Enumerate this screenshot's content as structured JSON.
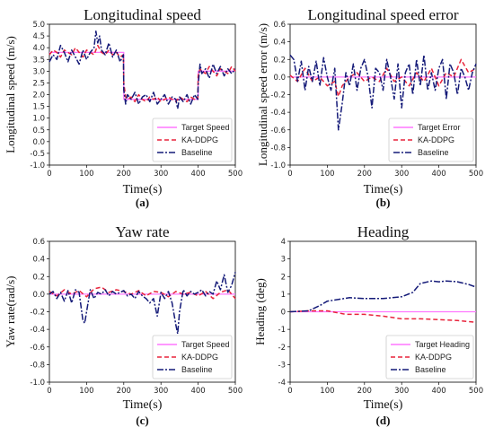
{
  "colors": {
    "target": "#ff77ff",
    "kaddpg": "#e8243c",
    "baseline": "#141a78"
  },
  "chart_data": [
    {
      "type": "line",
      "panel": "(a)",
      "title": "Longitudinal speed",
      "xlabel": "Time(s)",
      "ylabel": "Longitudinal speed (m/s)",
      "xlim": [
        0,
        500
      ],
      "ylim": [
        -1.0,
        5.0
      ],
      "xticks": [
        0,
        100,
        200,
        300,
        400,
        500
      ],
      "yticks": [
        -1.0,
        -0.5,
        0.0,
        0.5,
        1.0,
        1.5,
        2.0,
        2.5,
        3.0,
        3.5,
        4.0,
        4.5,
        5.0
      ],
      "grid": false,
      "legend": "lower-right",
      "series": [
        {
          "name": "Target Speed",
          "style": "solid",
          "color": "#ff77ff",
          "x": [
            0,
            200,
            200,
            400,
            400,
            500
          ],
          "y": [
            3.8,
            3.8,
            1.8,
            1.8,
            3.0,
            3.0
          ]
        },
        {
          "name": "KA-DDPG",
          "style": "dashed",
          "color": "#e8243c",
          "x": [
            0,
            10,
            20,
            30,
            40,
            50,
            60,
            70,
            80,
            90,
            100,
            110,
            120,
            130,
            140,
            150,
            160,
            170,
            180,
            190,
            199,
            200,
            205,
            210,
            220,
            230,
            240,
            250,
            260,
            270,
            280,
            290,
            300,
            310,
            320,
            330,
            340,
            350,
            360,
            370,
            380,
            390,
            399,
            400,
            405,
            410,
            420,
            430,
            440,
            450,
            460,
            470,
            480,
            490,
            500
          ],
          "y": [
            3.7,
            3.9,
            3.8,
            3.6,
            3.9,
            3.8,
            3.7,
            4.0,
            3.8,
            3.6,
            3.9,
            3.8,
            3.7,
            4.1,
            3.8,
            3.7,
            3.9,
            3.7,
            3.8,
            3.6,
            3.7,
            2.5,
            1.9,
            1.8,
            1.9,
            1.7,
            2.0,
            1.8,
            1.7,
            1.9,
            1.8,
            1.9,
            1.7,
            1.8,
            1.9,
            1.8,
            1.7,
            1.9,
            1.8,
            1.7,
            1.9,
            1.8,
            1.8,
            2.8,
            3.1,
            3.0,
            2.9,
            3.2,
            3.0,
            2.8,
            3.1,
            3.0,
            2.9,
            3.2,
            3.0
          ]
        },
        {
          "name": "Baseline",
          "style": "dashdot",
          "color": "#141a78",
          "x": [
            0,
            10,
            20,
            30,
            40,
            50,
            60,
            70,
            80,
            90,
            100,
            110,
            120,
            125,
            130,
            135,
            140,
            150,
            160,
            170,
            180,
            190,
            199,
            200,
            205,
            210,
            220,
            230,
            240,
            250,
            260,
            270,
            280,
            290,
            300,
            310,
            320,
            330,
            340,
            345,
            350,
            360,
            370,
            380,
            390,
            399,
            400,
            405,
            410,
            420,
            430,
            440,
            450,
            460,
            470,
            480,
            490,
            500
          ],
          "y": [
            3.4,
            3.7,
            3.5,
            4.1,
            3.8,
            3.4,
            3.9,
            3.6,
            3.3,
            3.9,
            3.5,
            3.8,
            4.0,
            4.7,
            4.2,
            4.5,
            3.9,
            3.7,
            4.2,
            3.6,
            3.9,
            3.4,
            3.7,
            2.2,
            1.6,
            2.0,
            1.8,
            2.1,
            1.6,
            1.9,
            2.0,
            1.7,
            2.1,
            1.6,
            1.8,
            2.0,
            1.6,
            1.9,
            1.8,
            1.4,
            1.9,
            1.7,
            2.0,
            1.6,
            2.0,
            1.8,
            2.4,
            3.3,
            2.9,
            3.1,
            2.7,
            3.3,
            2.9,
            3.2,
            2.8,
            3.1,
            2.9,
            3.1
          ]
        }
      ]
    },
    {
      "type": "line",
      "panel": "(b)",
      "title": "Longitudinal speed error",
      "xlabel": "Time(s)",
      "ylabel": "Longitudinal speed error (m/s)",
      "xlim": [
        0,
        500
      ],
      "ylim": [
        -1.0,
        0.6
      ],
      "xticks": [
        0,
        100,
        200,
        300,
        400,
        500
      ],
      "yticks": [
        -1.0,
        -0.8,
        -0.6,
        -0.4,
        -0.2,
        0.0,
        0.2,
        0.4,
        0.6
      ],
      "grid": false,
      "legend": "lower-right",
      "series": [
        {
          "name": "Target Error",
          "style": "solid",
          "color": "#ff77ff",
          "x": [
            0,
            500
          ],
          "y": [
            0.0,
            0.0
          ]
        },
        {
          "name": "KA-DDPG",
          "style": "dashed",
          "color": "#e8243c",
          "x": [
            0,
            20,
            40,
            60,
            80,
            100,
            120,
            130,
            140,
            160,
            180,
            200,
            220,
            240,
            260,
            280,
            300,
            320,
            340,
            360,
            380,
            400,
            420,
            440,
            460,
            480,
            500
          ],
          "y": [
            0.02,
            -0.05,
            0.1,
            -0.05,
            0.0,
            -0.1,
            -0.05,
            -0.22,
            -0.1,
            0.0,
            0.05,
            -0.05,
            0.0,
            -0.05,
            0.1,
            -0.05,
            0.0,
            -0.1,
            0.05,
            -0.05,
            0.1,
            -0.1,
            0.05,
            0.0,
            0.2,
            0.05,
            0.1
          ]
        },
        {
          "name": "Baseline",
          "style": "dashdot",
          "color": "#141a78",
          "x": [
            0,
            10,
            20,
            30,
            40,
            50,
            60,
            70,
            80,
            90,
            100,
            110,
            120,
            130,
            140,
            150,
            160,
            170,
            180,
            190,
            200,
            210,
            220,
            230,
            240,
            250,
            260,
            270,
            280,
            290,
            300,
            310,
            320,
            330,
            340,
            350,
            360,
            370,
            380,
            390,
            400,
            410,
            420,
            430,
            440,
            450,
            460,
            470,
            480,
            490,
            500
          ],
          "y": [
            0.25,
            0.2,
            -0.05,
            0.18,
            -0.15,
            0.12,
            -0.05,
            0.18,
            -0.1,
            0.22,
            0.0,
            -0.15,
            0.1,
            -0.6,
            -0.3,
            0.05,
            -0.1,
            0.15,
            -0.15,
            0.1,
            0.2,
            0.0,
            -0.35,
            0.1,
            0.05,
            -0.15,
            0.2,
            0.0,
            -0.25,
            0.15,
            -0.35,
            0.05,
            0.15,
            -0.2,
            0.2,
            -0.1,
            0.25,
            -0.15,
            0.05,
            -0.15,
            0.1,
            0.2,
            -0.25,
            0.15,
            0.05,
            -0.2,
            0.1,
            0.0,
            -0.15,
            0.05,
            0.15
          ]
        }
      ]
    },
    {
      "type": "line",
      "panel": "(c)",
      "title": "Yaw rate",
      "xlabel": "Time(s)",
      "ylabel": "Yaw rate(rad/s)",
      "xlim": [
        0,
        500
      ],
      "ylim": [
        -1.0,
        0.6
      ],
      "xticks": [
        0,
        100,
        200,
        300,
        400,
        500
      ],
      "yticks": [
        -1.0,
        -0.8,
        -0.6,
        -0.4,
        -0.2,
        0.0,
        0.2,
        0.4,
        0.6
      ],
      "grid": false,
      "legend": "lower-right",
      "series": [
        {
          "name": "Target Speed",
          "style": "solid",
          "color": "#ff77ff",
          "x": [
            0,
            500
          ],
          "y": [
            0.0,
            0.0
          ]
        },
        {
          "name": "KA-DDPG",
          "style": "dashed",
          "color": "#e8243c",
          "x": [
            0,
            20,
            40,
            60,
            80,
            100,
            120,
            140,
            160,
            180,
            200,
            220,
            240,
            260,
            280,
            300,
            320,
            340,
            360,
            380,
            400,
            420,
            440,
            460,
            480,
            500
          ],
          "y": [
            0.03,
            -0.02,
            0.05,
            0.0,
            0.04,
            -0.03,
            0.06,
            0.08,
            0.02,
            0.05,
            0.03,
            0.0,
            0.04,
            -0.02,
            0.03,
            0.02,
            -0.03,
            0.03,
            0.0,
            0.02,
            -0.02,
            0.03,
            -0.05,
            0.02,
            0.05,
            -0.05
          ]
        },
        {
          "name": "Baseline",
          "style": "dashdot",
          "color": "#141a78",
          "x": [
            0,
            10,
            20,
            30,
            40,
            50,
            60,
            70,
            80,
            90,
            95,
            100,
            110,
            120,
            130,
            140,
            150,
            160,
            170,
            180,
            190,
            200,
            210,
            220,
            230,
            240,
            250,
            260,
            270,
            280,
            290,
            300,
            310,
            320,
            330,
            340,
            345,
            350,
            360,
            370,
            380,
            390,
            400,
            410,
            420,
            430,
            440,
            450,
            460,
            470,
            480,
            490,
            500
          ],
          "y": [
            0.0,
            0.03,
            -0.05,
            0.02,
            -0.08,
            0.04,
            -0.1,
            0.05,
            0.02,
            -0.3,
            -0.33,
            -0.2,
            0.05,
            -0.05,
            0.02,
            0.0,
            0.05,
            -0.02,
            0.03,
            0.0,
            0.02,
            0.04,
            -0.02,
            0.0,
            -0.05,
            0.03,
            -0.02,
            -0.05,
            -0.1,
            -0.05,
            -0.25,
            0.02,
            -0.05,
            0.03,
            -0.1,
            -0.35,
            -0.45,
            -0.2,
            0.05,
            -0.02,
            0.03,
            0.0,
            0.02,
            0.05,
            -0.02,
            0.03,
            0.0,
            0.15,
            0.05,
            0.22,
            0.02,
            0.1,
            0.25
          ]
        }
      ]
    },
    {
      "type": "line",
      "panel": "(d)",
      "title": "Heading",
      "xlabel": "Time(s)",
      "ylabel": "Heading (deg)",
      "xlim": [
        0,
        500
      ],
      "ylim": [
        -4,
        4
      ],
      "xticks": [
        0,
        100,
        200,
        300,
        400,
        500
      ],
      "yticks": [
        -4,
        -3,
        -2,
        -1,
        0,
        1,
        2,
        3,
        4
      ],
      "grid": false,
      "legend": "lower-right",
      "series": [
        {
          "name": "Target Heading",
          "style": "solid",
          "color": "#ff77ff",
          "x": [
            0,
            500
          ],
          "y": [
            0.0,
            0.0
          ]
        },
        {
          "name": "KA-DDPG",
          "style": "dashed",
          "color": "#e8243c",
          "x": [
            0,
            50,
            100,
            150,
            200,
            250,
            300,
            350,
            400,
            450,
            500
          ],
          "y": [
            0.0,
            0.05,
            0.05,
            -0.15,
            -0.15,
            -0.25,
            -0.4,
            -0.4,
            -0.45,
            -0.5,
            -0.6
          ]
        },
        {
          "name": "Baseline",
          "style": "dashdot",
          "color": "#141a78",
          "x": [
            0,
            50,
            80,
            100,
            130,
            160,
            200,
            250,
            300,
            330,
            350,
            380,
            400,
            420,
            450,
            480,
            500
          ],
          "y": [
            0.0,
            0.05,
            0.35,
            0.6,
            0.7,
            0.8,
            0.75,
            0.75,
            0.85,
            1.1,
            1.6,
            1.75,
            1.7,
            1.75,
            1.7,
            1.55,
            1.4
          ]
        }
      ]
    }
  ]
}
